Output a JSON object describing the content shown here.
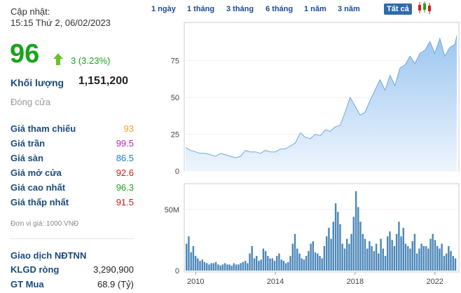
{
  "quote": {
    "update_label": "Cập nhật:",
    "update_time": "15:15 Thứ 2, 06/02/2023",
    "price": "96",
    "change": "3 (3.23%)",
    "volume_label": "Khối lượng",
    "volume_value": "1,151,200",
    "close_label": "Đóng cửa",
    "stats": [
      {
        "label": "Giá tham chiếu",
        "value": "93",
        "color": "#f0a020"
      },
      {
        "label": "Giá trần",
        "value": "99.5",
        "color": "#c020c0"
      },
      {
        "label": "Giá sàn",
        "value": "86.5",
        "color": "#1a7ad0"
      },
      {
        "label": "Giá mở cửa",
        "value": "92.6",
        "color": "#d01818"
      },
      {
        "label": "Giá cao nhất",
        "value": "96.3",
        "color": "#1aa31a"
      },
      {
        "label": "Giá thấp nhất",
        "value": "91.5",
        "color": "#d01818"
      }
    ],
    "unit_note": "Đơn vị giá: 1000 VNĐ",
    "foreign": {
      "title": "Giao dịch NĐTNN",
      "rows": [
        {
          "label": "KLGD ròng",
          "value": "3,290,900"
        },
        {
          "label": "GT Mua",
          "value": "68.9 (Tỷ)"
        }
      ]
    }
  },
  "toolbar": {
    "ranges": [
      "1 ngày",
      "1 tháng",
      "3 tháng",
      "6 tháng",
      "1 năm",
      "3 năm",
      "Tất cả"
    ],
    "active_range": "Tất cả",
    "chart_toggle_icon": "candlestick-icon"
  },
  "colors": {
    "up": "#1aa31a",
    "line": "#6fa8e0",
    "area_top": "#9cc6f0",
    "area_bottom": "#e8f2fc",
    "volume_bar": "#4a86b8"
  },
  "chart_data": [
    {
      "type": "area",
      "x": [
        2009.5,
        2009.75,
        2010,
        2010.25,
        2010.5,
        2010.75,
        2011,
        2011.25,
        2011.5,
        2011.75,
        2012,
        2012.25,
        2012.5,
        2012.75,
        2013,
        2013.25,
        2013.5,
        2013.75,
        2014,
        2014.25,
        2014.5,
        2014.75,
        2015,
        2015.25,
        2015.5,
        2015.75,
        2016,
        2016.25,
        2016.5,
        2016.75,
        2017,
        2017.25,
        2017.5,
        2017.75,
        2018,
        2018.25,
        2018.5,
        2018.75,
        2019,
        2019.25,
        2019.5,
        2019.75,
        2020,
        2020.25,
        2020.5,
        2020.75,
        2021,
        2021.25,
        2021.5,
        2021.75,
        2022,
        2022.25,
        2022.5,
        2022.75,
        2023,
        2023.1
      ],
      "values": [
        16,
        14,
        13,
        12,
        12,
        11,
        10,
        12,
        11,
        10,
        9,
        10,
        14,
        13,
        13,
        12,
        14,
        13,
        13,
        15,
        15,
        17,
        19,
        26,
        23,
        22,
        25,
        24,
        28,
        27,
        30,
        31,
        40,
        50,
        44,
        38,
        40,
        48,
        55,
        62,
        55,
        65,
        58,
        70,
        72,
        78,
        73,
        80,
        82,
        88,
        80,
        90,
        78,
        84,
        86,
        92
      ],
      "ylim": [
        0,
        100
      ],
      "yticks": [
        0,
        25,
        50,
        75
      ],
      "xticks": [
        "2010",
        "2014",
        "2018",
        "2022"
      ]
    },
    {
      "type": "bar",
      "x_range": [
        2009.5,
        2023.1
      ],
      "values": [
        22,
        28,
        15,
        20,
        12,
        10,
        8,
        9,
        7,
        6,
        5,
        6,
        6,
        7,
        5,
        4,
        5,
        6,
        5,
        5,
        4,
        6,
        5,
        5,
        6,
        7,
        8,
        6,
        14,
        20,
        10,
        12,
        8,
        9,
        18,
        16,
        12,
        10,
        10,
        8,
        12,
        14,
        9,
        8,
        6,
        7,
        12,
        22,
        30,
        18,
        14,
        10,
        9,
        12,
        16,
        22,
        24,
        15,
        14,
        12,
        10,
        20,
        28,
        35,
        26,
        40,
        55,
        48,
        38,
        22,
        18,
        26,
        22,
        30,
        44,
        65,
        52,
        40,
        30,
        26,
        18,
        24,
        20,
        16,
        22,
        14,
        26,
        18,
        12,
        28,
        32,
        25,
        20,
        30,
        40,
        28,
        35,
        22,
        20,
        18,
        24,
        30,
        14,
        18,
        22,
        20,
        20,
        18,
        26,
        30,
        25,
        20,
        18,
        22,
        12,
        14,
        20,
        16,
        12,
        10
      ],
      "ylim": [
        0,
        70
      ],
      "yticks": [
        0,
        50
      ],
      "ytick_labels": [
        "0",
        "50M"
      ]
    }
  ]
}
